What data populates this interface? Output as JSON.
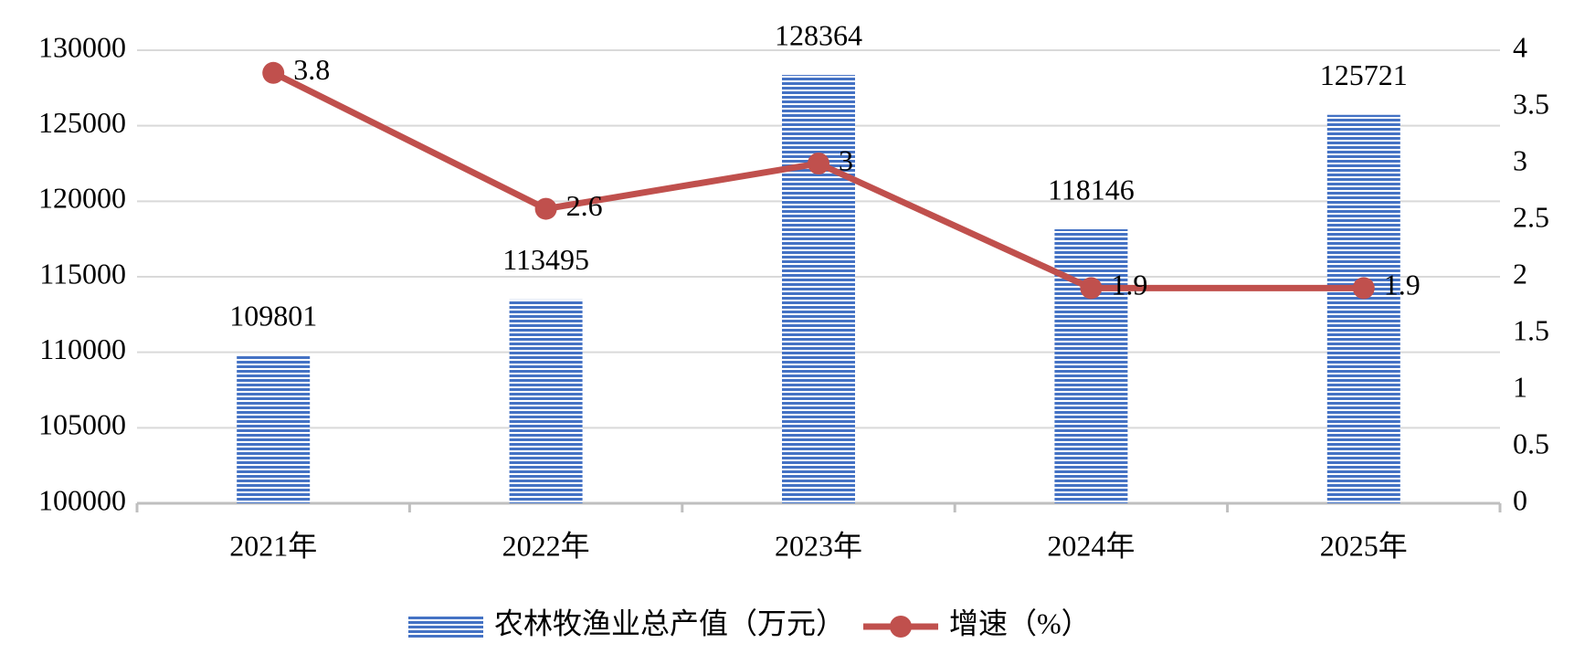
{
  "chart_data": {
    "type": "bar",
    "categories": [
      "2021年",
      "2022年",
      "2023年",
      "2024年",
      "2025年"
    ],
    "series": [
      {
        "name": "农林牧渔业总产值（万元）",
        "type": "bar",
        "color": "#4472c4",
        "values": [
          109801,
          113495,
          128364,
          118146,
          125721
        ]
      },
      {
        "name": "增速（%）",
        "type": "line",
        "axis": "y2",
        "color": "#c0504d",
        "values": [
          3.8,
          2.6,
          3,
          1.9,
          1.9
        ]
      }
    ],
    "ylim": [
      100000,
      130000
    ],
    "yticks": [
      100000,
      105000,
      110000,
      115000,
      120000,
      125000,
      130000
    ],
    "y2lim": [
      0,
      4
    ],
    "y2ticks": [
      0,
      0.5,
      1,
      1.5,
      2,
      2.5,
      3,
      3.5,
      4
    ],
    "grid": true,
    "legend": "bottom"
  }
}
